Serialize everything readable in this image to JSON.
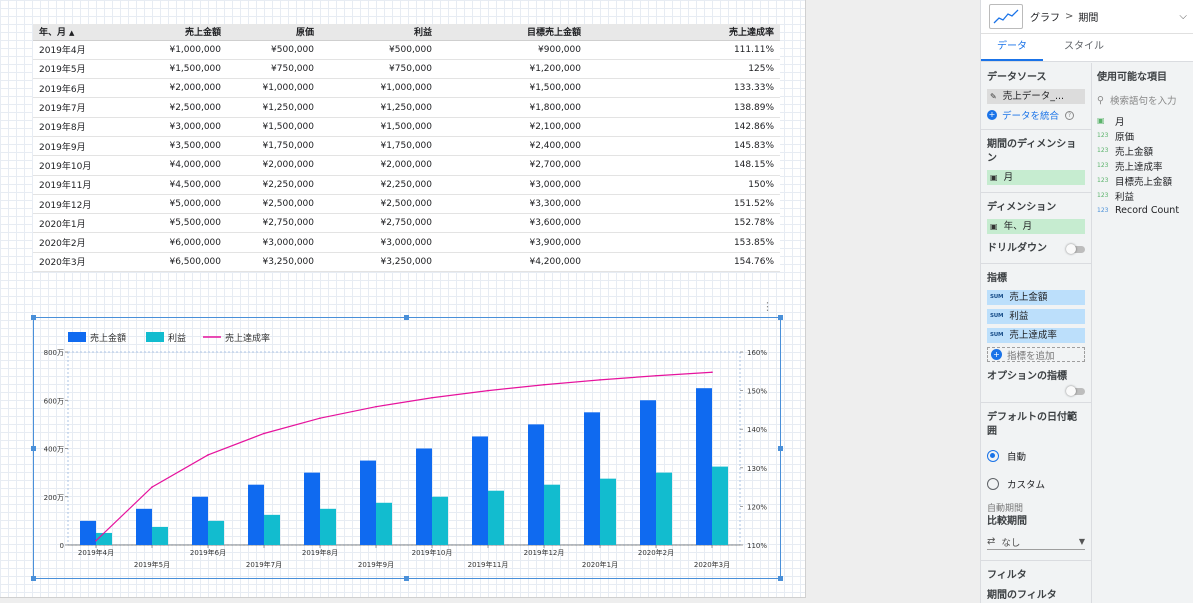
{
  "table": {
    "headers": [
      "年、月",
      "売上金額",
      "原価",
      "利益",
      "目標売上金額",
      "売上達成率"
    ],
    "sort_indicator": "▲",
    "rows": [
      [
        "2019年4月",
        "¥1,000,000",
        "¥500,000",
        "¥500,000",
        "¥900,000",
        "111.11%"
      ],
      [
        "2019年5月",
        "¥1,500,000",
        "¥750,000",
        "¥750,000",
        "¥1,200,000",
        "125%"
      ],
      [
        "2019年6月",
        "¥2,000,000",
        "¥1,000,000",
        "¥1,000,000",
        "¥1,500,000",
        "133.33%"
      ],
      [
        "2019年7月",
        "¥2,500,000",
        "¥1,250,000",
        "¥1,250,000",
        "¥1,800,000",
        "138.89%"
      ],
      [
        "2019年8月",
        "¥3,000,000",
        "¥1,500,000",
        "¥1,500,000",
        "¥2,100,000",
        "142.86%"
      ],
      [
        "2019年9月",
        "¥3,500,000",
        "¥1,750,000",
        "¥1,750,000",
        "¥2,400,000",
        "145.83%"
      ],
      [
        "2019年10月",
        "¥4,000,000",
        "¥2,000,000",
        "¥2,000,000",
        "¥2,700,000",
        "148.15%"
      ],
      [
        "2019年11月",
        "¥4,500,000",
        "¥2,250,000",
        "¥2,250,000",
        "¥3,000,000",
        "150%"
      ],
      [
        "2019年12月",
        "¥5,000,000",
        "¥2,500,000",
        "¥2,500,000",
        "¥3,300,000",
        "151.52%"
      ],
      [
        "2020年1月",
        "¥5,500,000",
        "¥2,750,000",
        "¥2,750,000",
        "¥3,600,000",
        "152.78%"
      ],
      [
        "2020年2月",
        "¥6,000,000",
        "¥3,000,000",
        "¥3,000,000",
        "¥3,900,000",
        "153.85%"
      ],
      [
        "2020年3月",
        "¥6,500,000",
        "¥3,250,000",
        "¥3,250,000",
        "¥4,200,000",
        "154.76%"
      ]
    ]
  },
  "chart_data": {
    "type": "bar",
    "categories": [
      "2019年4月",
      "2019年5月",
      "2019年6月",
      "2019年7月",
      "2019年8月",
      "2019年9月",
      "2019年10月",
      "2019年11月",
      "2019年12月",
      "2020年1月",
      "2020年2月",
      "2020年3月"
    ],
    "series": [
      {
        "name": "売上金額",
        "type": "bar",
        "axis": "left",
        "color": "#0f6af0",
        "values": [
          1000000,
          1500000,
          2000000,
          2500000,
          3000000,
          3500000,
          4000000,
          4500000,
          5000000,
          5500000,
          6000000,
          6500000
        ]
      },
      {
        "name": "利益",
        "type": "bar",
        "axis": "left",
        "color": "#12bccf",
        "values": [
          500000,
          750000,
          1000000,
          1250000,
          1500000,
          1750000,
          2000000,
          2250000,
          2500000,
          2750000,
          3000000,
          3250000
        ]
      },
      {
        "name": "売上達成率",
        "type": "line",
        "axis": "right",
        "color": "#e6139d",
        "values": [
          111.11,
          125,
          133.33,
          138.89,
          142.86,
          145.83,
          148.15,
          150,
          151.52,
          152.78,
          153.85,
          154.76
        ]
      }
    ],
    "left_axis": {
      "ylim": [
        0,
        8000000
      ],
      "ticks": [
        0,
        2000000,
        4000000,
        6000000,
        8000000
      ],
      "tick_labels": [
        "0",
        "200万",
        "400万",
        "600万",
        "800万"
      ]
    },
    "right_axis": {
      "ylim": [
        110,
        160
      ],
      "ticks": [
        110,
        120,
        130,
        140,
        150,
        160
      ],
      "tick_labels": [
        "110%",
        "120%",
        "130%",
        "140%",
        "150%",
        "160%"
      ]
    },
    "legend_position": "top-left",
    "grid": true
  },
  "panel": {
    "chart_type_icon": "line-chart-icon",
    "breadcrumb": [
      "グラフ",
      "期間"
    ],
    "breadcrumb_sep": ">",
    "tabs": [
      "データ",
      "スタイル"
    ],
    "data_source_title": "データソース",
    "data_source_name": "売上データ_...",
    "blend_label": "データを統合",
    "period_dim_title": "期間のディメンション",
    "period_dim_value": "月",
    "dimension_title": "ディメンション",
    "dimension_value": "年、月",
    "drilldown_label": "ドリルダウン",
    "metric_title": "指標",
    "metric_agg": "SUM",
    "metrics": [
      "売上金額",
      "利益",
      "売上達成率"
    ],
    "add_metric_label": "指標を追加",
    "optional_metric_label": "オプションの指標",
    "default_date_title": "デフォルトの日付範囲",
    "radio_auto": "自動",
    "radio_custom": "カスタム",
    "auto_period_label": "自動期間",
    "compare_title": "比較期間",
    "compare_value": "なし",
    "filter_title": "フィルタ",
    "period_filter_title": "期間のフィルタ",
    "available_title": "使用可能な項目",
    "search_placeholder": "検索語句を入力",
    "fields": [
      {
        "name": "月",
        "type": "date"
      },
      {
        "name": "原価",
        "type": "123"
      },
      {
        "name": "売上金額",
        "type": "123"
      },
      {
        "name": "売上達成率",
        "type": "123"
      },
      {
        "name": "目標売上金額",
        "type": "123"
      },
      {
        "name": "利益",
        "type": "123"
      },
      {
        "name": "Record Count",
        "type": "123"
      }
    ]
  }
}
